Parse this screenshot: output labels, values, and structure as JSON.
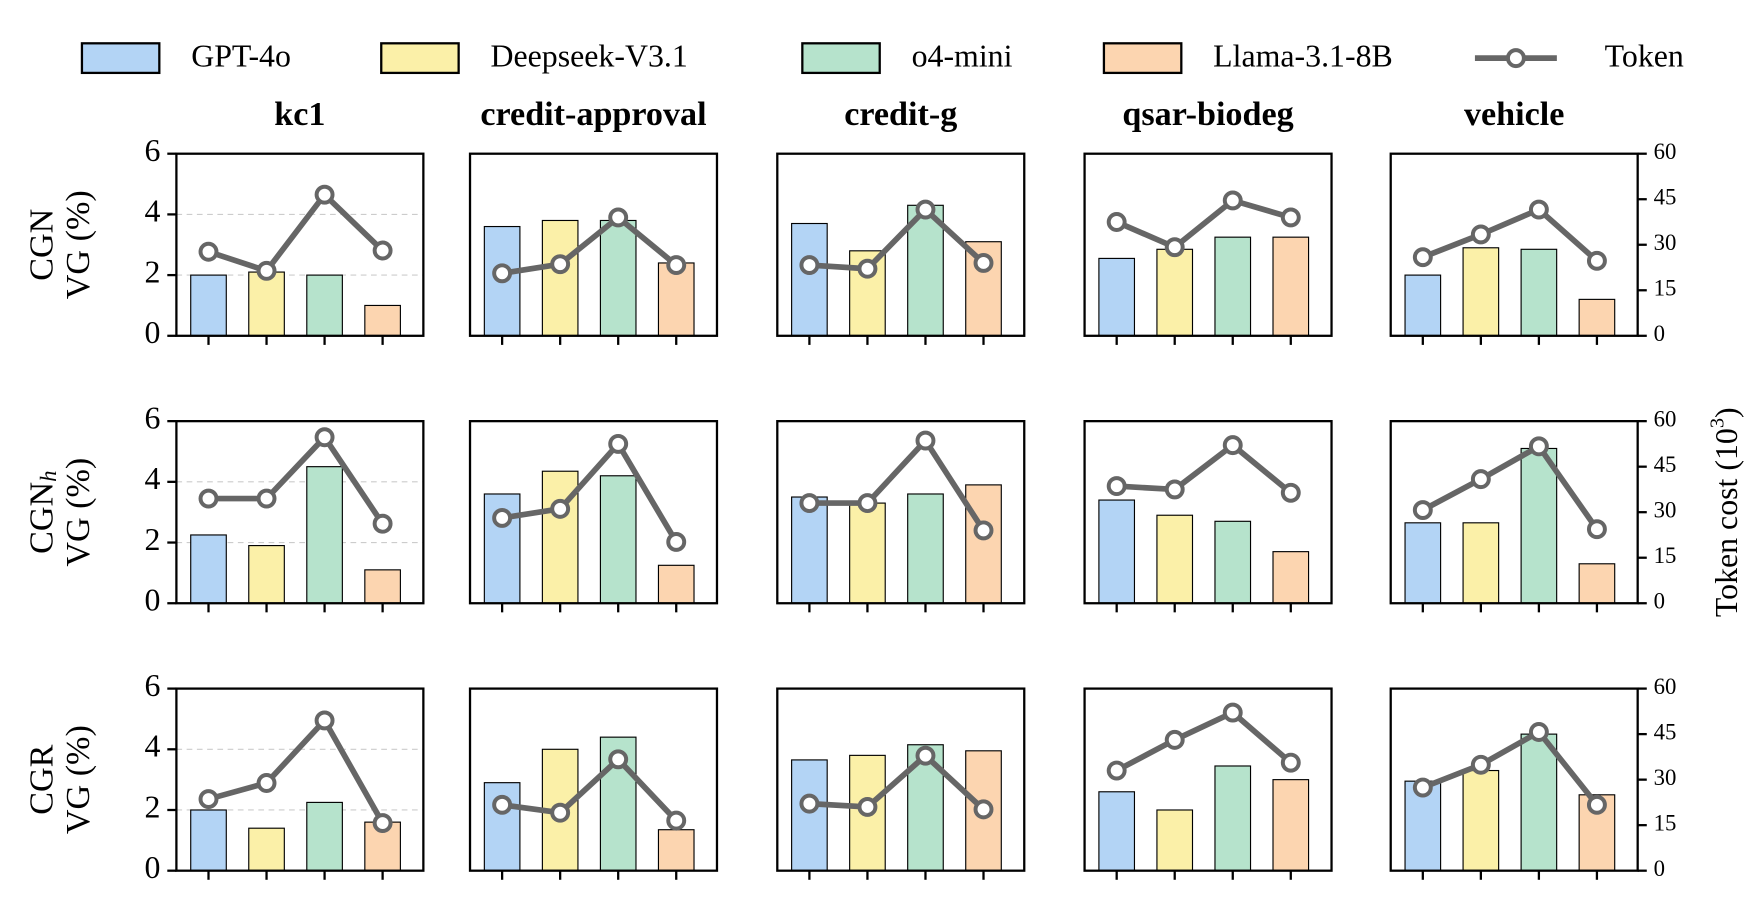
{
  "legend": {
    "entries": [
      {
        "name": "GPT-4o",
        "color": "#b3d4f5"
      },
      {
        "name": "Deepseek-V3.1",
        "color": "#fbf0a8"
      },
      {
        "name": "o4-mini",
        "color": "#b6e3cc"
      },
      {
        "name": "Llama-3.1-8B",
        "color": "#fcd5b0"
      },
      {
        "name": "Token",
        "color": "#666666"
      }
    ]
  },
  "y2label": [
    "Token cost (10",
    "3",
    ")"
  ],
  "chart_data": [
    {
      "type": "bar",
      "title": "kc1",
      "ylabel": [
        "CGN",
        "VG (%)"
      ],
      "values": [
        2.0,
        2.1,
        2.0,
        1.0
      ],
      "line_values": [
        27.7,
        21.4,
        46.5,
        28.1
      ],
      "ylim": [
        0,
        6
      ],
      "yticks": [
        0,
        2,
        4,
        6
      ],
      "y2lim": [
        0,
        60
      ],
      "grid": true
    },
    {
      "type": "bar",
      "title": "credit-approval",
      "values": [
        3.6,
        3.8,
        3.8,
        2.4
      ],
      "line_values": [
        20.6,
        23.6,
        39.0,
        23.3
      ],
      "ylim": [
        0,
        6
      ],
      "y2lim": [
        0,
        60
      ]
    },
    {
      "type": "bar",
      "title": "credit-g",
      "values": [
        3.7,
        2.8,
        4.3,
        3.1
      ],
      "line_values": [
        23.3,
        22.1,
        41.6,
        24.0
      ],
      "ylim": [
        0,
        6
      ],
      "y2lim": [
        0,
        60
      ]
    },
    {
      "type": "bar",
      "title": "qsar-biodeg",
      "values": [
        2.55,
        2.85,
        3.25,
        3.25
      ],
      "line_values": [
        37.5,
        29.2,
        44.6,
        39.0
      ],
      "ylim": [
        0,
        6
      ],
      "y2lim": [
        0,
        60
      ]
    },
    {
      "type": "bar",
      "title": "vehicle",
      "values": [
        2.0,
        2.9,
        2.85,
        1.2
      ],
      "line_values": [
        25.9,
        33.4,
        41.6,
        24.7
      ],
      "ylim": [
        0,
        6
      ],
      "y2lim": [
        0,
        60
      ],
      "y2ticks": [
        0,
        15,
        30,
        45,
        60
      ]
    },
    {
      "type": "bar",
      "ylabel": [
        "CGN",
        "VG (%)"
      ],
      "ylabel_subscript": "h",
      "values": [
        2.25,
        1.9,
        4.5,
        1.1
      ],
      "line_values": [
        34.5,
        34.5,
        54.7,
        26.2
      ],
      "ylim": [
        0,
        6
      ],
      "yticks": [
        0,
        2,
        4,
        6
      ],
      "y2lim": [
        0,
        60
      ],
      "grid": true
    },
    {
      "type": "bar",
      "values": [
        3.6,
        4.35,
        4.2,
        1.25
      ],
      "line_values": [
        28.1,
        31.1,
        52.5,
        20.2
      ],
      "ylim": [
        0,
        6
      ],
      "y2lim": [
        0,
        60
      ]
    },
    {
      "type": "bar",
      "values": [
        3.5,
        3.3,
        3.6,
        3.9
      ],
      "line_values": [
        33.0,
        33.0,
        53.6,
        24.0
      ],
      "ylim": [
        0,
        6
      ],
      "y2lim": [
        0,
        60
      ]
    },
    {
      "type": "bar",
      "values": [
        3.4,
        2.9,
        2.7,
        1.7
      ],
      "line_values": [
        38.6,
        37.5,
        52.1,
        36.4
      ],
      "ylim": [
        0,
        6
      ],
      "y2lim": [
        0,
        60
      ]
    },
    {
      "type": "bar",
      "values": [
        2.65,
        2.65,
        5.1,
        1.3
      ],
      "line_values": [
        30.7,
        40.9,
        51.7,
        24.4
      ],
      "ylim": [
        0,
        6
      ],
      "y2lim": [
        0,
        60
      ],
      "y2ticks": [
        0,
        15,
        30,
        45,
        60
      ]
    },
    {
      "type": "bar",
      "ylabel": [
        "CGR",
        "VG (%)"
      ],
      "values": [
        2.0,
        1.4,
        2.25,
        1.6
      ],
      "line_values": [
        23.6,
        28.9,
        49.5,
        15.7
      ],
      "ylim": [
        0,
        6
      ],
      "yticks": [
        0,
        2,
        4,
        6
      ],
      "y2lim": [
        0,
        60
      ],
      "grid": true
    },
    {
      "type": "bar",
      "values": [
        2.9,
        4.0,
        4.4,
        1.35
      ],
      "line_values": [
        21.7,
        19.1,
        36.7,
        16.5
      ],
      "ylim": [
        0,
        6
      ],
      "y2lim": [
        0,
        60
      ]
    },
    {
      "type": "bar",
      "values": [
        3.65,
        3.8,
        4.15,
        3.95
      ],
      "line_values": [
        22.1,
        21.0,
        37.9,
        20.2
      ],
      "ylim": [
        0,
        6
      ],
      "y2lim": [
        0,
        60
      ]
    },
    {
      "type": "bar",
      "values": [
        2.6,
        2.0,
        3.45,
        3.0
      ],
      "line_values": [
        33.0,
        43.1,
        52.1,
        35.6
      ],
      "ylim": [
        0,
        6
      ],
      "y2lim": [
        0,
        60
      ]
    },
    {
      "type": "bar",
      "values": [
        2.95,
        3.3,
        4.5,
        2.5
      ],
      "line_values": [
        27.4,
        34.9,
        45.7,
        21.7
      ],
      "ylim": [
        0,
        6
      ],
      "y2lim": [
        0,
        60
      ],
      "y2ticks": [
        0,
        15,
        30,
        45,
        60
      ]
    }
  ]
}
